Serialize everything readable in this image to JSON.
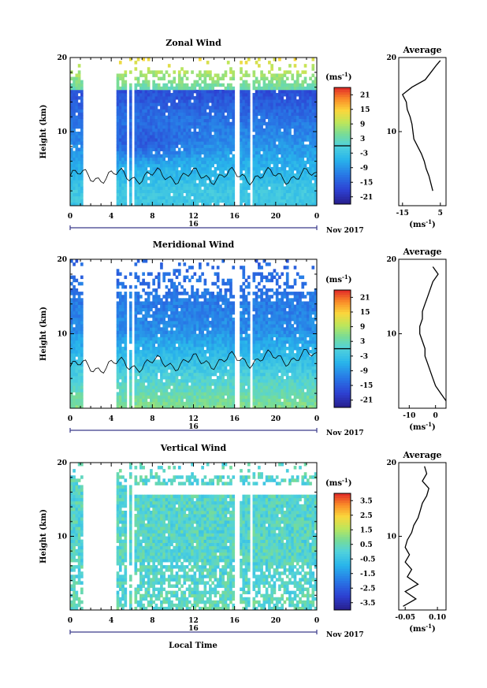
{
  "figure": {
    "x_axis_label": "Local Time",
    "date_label": "Nov 2017",
    "day_label": "16"
  },
  "chart_data": [
    {
      "type": "heatmap",
      "title": "Zonal Wind",
      "ylabel": "Height (km)",
      "xlabel": "Local Time",
      "x_ticks": [
        "0",
        "4",
        "8",
        "12",
        "16",
        "20",
        "0"
      ],
      "y_ticks": [
        "10",
        "20"
      ],
      "ylim": [
        0,
        20
      ],
      "xlim": [
        0,
        24
      ],
      "colorbar": {
        "unit_label": "(ms",
        "unit_exp": "-1",
        "unit_close": ")",
        "ticks": [
          "21",
          "15",
          "9",
          "3",
          "-3",
          "-9",
          "-15",
          "-21"
        ],
        "range": [
          -24,
          24
        ],
        "zero_contour": true
      },
      "gaps_hours": [
        [
          1.3,
          4.5
        ],
        [
          5.6,
          5.85
        ],
        [
          6.0,
          6.35
        ],
        [
          16.1,
          16.4
        ],
        [
          17.55,
          17.8
        ]
      ],
      "profile": {
        "title": "Average",
        "xlabel": "(ms",
        "xlabel_exp": "-1",
        "xlabel_close": ")",
        "x_ticks": [
          "-15",
          "5"
        ],
        "x_tick_values": [
          -15,
          5
        ],
        "y_ticks": [
          "10",
          "20"
        ],
        "xlim": [
          -17,
          8
        ],
        "heights_km": [
          2,
          3,
          4,
          5,
          6,
          7,
          8,
          9,
          10,
          11,
          12,
          13,
          14,
          15,
          16,
          17,
          18,
          19,
          19.6
        ],
        "values": [
          1,
          0,
          -1,
          -2.5,
          -3.5,
          -5,
          -7,
          -9,
          -9.5,
          -10,
          -11,
          -12.5,
          -13,
          -15,
          -10,
          -3,
          0,
          3,
          5
        ]
      }
    },
    {
      "type": "heatmap",
      "title": "Meridional Wind",
      "ylabel": "Height (km)",
      "xlabel": "Local Time",
      "x_ticks": [
        "0",
        "4",
        "8",
        "12",
        "16",
        "20",
        "0"
      ],
      "y_ticks": [
        "10",
        "20"
      ],
      "ylim": [
        0,
        20
      ],
      "xlim": [
        0,
        24
      ],
      "colorbar": {
        "unit_label": "(ms",
        "unit_exp": "-1",
        "unit_close": ")",
        "ticks": [
          "21",
          "15",
          "9",
          "3",
          "-3",
          "-9",
          "-15",
          "-21"
        ],
        "range": [
          -24,
          24
        ],
        "zero_contour": true
      },
      "gaps_hours": [
        [
          1.3,
          4.5
        ],
        [
          5.6,
          5.85
        ],
        [
          6.0,
          6.35
        ],
        [
          16.1,
          16.4
        ],
        [
          17.55,
          17.8
        ]
      ],
      "profile": {
        "title": "Average",
        "xlabel": "(ms",
        "xlabel_exp": "-1",
        "xlabel_close": ")",
        "x_ticks": [
          "-10",
          "0"
        ],
        "x_tick_values": [
          -10,
          0
        ],
        "y_ticks": [
          "10",
          "20"
        ],
        "xlim": [
          -14,
          4
        ],
        "heights_km": [
          1,
          2,
          3,
          4,
          5,
          6,
          7,
          8,
          9,
          10,
          11,
          12,
          13,
          14,
          15,
          16,
          17,
          18,
          19
        ],
        "values": [
          4,
          2,
          0,
          -1,
          -2,
          -3,
          -4,
          -4,
          -5,
          -6,
          -6,
          -5,
          -5,
          -4,
          -3,
          -2,
          -1,
          1,
          -1
        ]
      }
    },
    {
      "type": "heatmap",
      "title": "Vertical Wind",
      "ylabel": "Height (km)",
      "xlabel": "Local Time",
      "x_ticks": [
        "0",
        "4",
        "8",
        "12",
        "16",
        "20",
        "0"
      ],
      "y_ticks": [
        "10",
        "20"
      ],
      "ylim": [
        0,
        20
      ],
      "xlim": [
        0,
        24
      ],
      "colorbar": {
        "unit_label": "(ms",
        "unit_exp": "-1",
        "unit_close": ")",
        "ticks": [
          "3.5",
          "2.5",
          "1.5",
          "0.5",
          "-0.5",
          "-1.5",
          "-2.5",
          "-3.5"
        ],
        "range": [
          -4,
          4
        ],
        "zero_contour": false
      },
      "gaps_hours": [
        [
          1.3,
          4.5
        ],
        [
          5.6,
          5.85
        ],
        [
          6.0,
          6.35
        ],
        [
          16.1,
          16.4
        ],
        [
          17.55,
          17.8
        ]
      ],
      "profile": {
        "title": "Average",
        "xlabel": "(ms",
        "xlabel_exp": "-1",
        "xlabel_close": ")",
        "x_ticks": [
          "-0.05",
          "0.10"
        ],
        "x_tick_values": [
          -0.05,
          0.1
        ],
        "y_ticks": [
          "10",
          "20"
        ],
        "xlim": [
          -0.08,
          0.14
        ],
        "heights_km": [
          0.5,
          1.5,
          2.5,
          3.5,
          4.5,
          5.5,
          6.5,
          7.5,
          8.5,
          9.5,
          10.5,
          11.5,
          12.5,
          13.5,
          14.5,
          15.5,
          16.5,
          17.5,
          18.5,
          19.5
        ],
        "values": [
          -0.06,
          0.0,
          -0.05,
          0.01,
          -0.04,
          -0.02,
          -0.05,
          -0.03,
          -0.05,
          -0.04,
          -0.02,
          -0.01,
          0.01,
          0.02,
          0.03,
          0.05,
          0.06,
          0.03,
          0.05,
          0.04
        ]
      }
    }
  ]
}
